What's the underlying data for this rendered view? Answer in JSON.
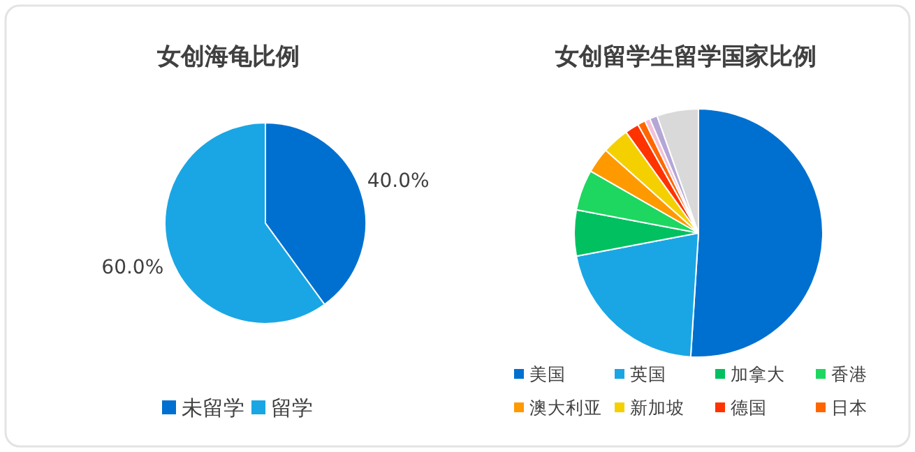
{
  "chart_data": [
    {
      "type": "pie",
      "title": "女创海龟比例",
      "categories": [
        "未留学",
        "留学"
      ],
      "values": [
        40,
        60
      ],
      "colors": [
        "#0070d0",
        "#1aa6e4"
      ],
      "value_labels": [
        "40.0%",
        "60.0%"
      ],
      "legend": "bottom"
    },
    {
      "type": "pie",
      "title": "女创留学生留学国家比例",
      "categories": [
        "美国",
        "英国",
        "加拿大",
        "香港",
        "澳大利亚",
        "新加坡",
        "德国",
        "日本",
        null,
        null,
        null
      ],
      "values": [
        51,
        21,
        6,
        5.3,
        3.3,
        3.5,
        1.8,
        1,
        0.7,
        1,
        5.4
      ],
      "colors": [
        "#0070d0",
        "#1aa6e4",
        "#00c060",
        "#1ed760",
        "#ff9900",
        "#f5d000",
        "#ff3300",
        "#ff6600",
        "#f4c0d8",
        "#b4a7d6",
        "#d9d9d9"
      ],
      "legend": "bottom"
    }
  ]
}
